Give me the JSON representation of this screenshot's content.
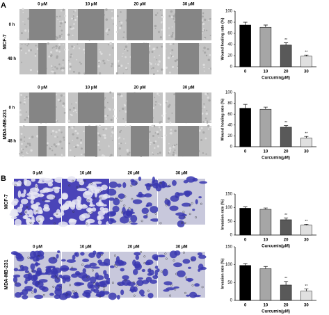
{
  "figure": {
    "panels": [
      {
        "label": "A",
        "blocks": [
          {
            "cell_line": "MCF-7",
            "columns": [
              "0 μM",
              "10 μM",
              "20 μM",
              "30 μM"
            ],
            "rows": [
              "0 h",
              "48 h"
            ]
          },
          {
            "cell_line": "MDA-MB-231",
            "columns": [
              "0 μM",
              "10 μM",
              "20 μM",
              "30 μM"
            ],
            "rows": [
              "0 h",
              "48 h"
            ]
          }
        ]
      },
      {
        "label": "B",
        "blocks": [
          {
            "cell_line": "MCF-7",
            "columns": [
              "0 μM",
              "10 μM",
              "20 μM",
              "30 μM"
            ]
          },
          {
            "cell_line": "MDA-MB-231",
            "columns": [
              "0 μM",
              "10 μM",
              "20 μM",
              "30 μM"
            ]
          }
        ]
      }
    ]
  },
  "chart_data": [
    {
      "type": "bar",
      "y_label": "Wound healing rate (%)",
      "x_label": "Curcumin(μM)",
      "categories": [
        "0",
        "10",
        "20",
        "30"
      ],
      "values": [
        75,
        71,
        39,
        19
      ],
      "errors": [
        5,
        4,
        4,
        2
      ],
      "colors": [
        "#000000",
        "#a6a6a6",
        "#595959",
        "#e0e0e0"
      ],
      "significance": [
        null,
        null,
        "**",
        "**"
      ],
      "ylim": [
        0,
        100
      ],
      "yticks": [
        0,
        20,
        40,
        60,
        80,
        100
      ]
    },
    {
      "type": "bar",
      "y_label": "Wound healing rate (%)",
      "x_label": "Curcumin(μM)",
      "categories": [
        "0",
        "10",
        "20",
        "30"
      ],
      "values": [
        71,
        69,
        36,
        16
      ],
      "errors": [
        7,
        4,
        3,
        3
      ],
      "colors": [
        "#000000",
        "#a6a6a6",
        "#595959",
        "#e0e0e0"
      ],
      "significance": [
        null,
        null,
        "**",
        "**"
      ],
      "ylim": [
        0,
        100
      ],
      "yticks": [
        0,
        20,
        40,
        60,
        80,
        100
      ]
    },
    {
      "type": "bar",
      "y_label": "Invasion rate (%)",
      "x_label": "Curcumin(μM)",
      "categories": [
        "0",
        "10",
        "20",
        "30"
      ],
      "values": [
        98,
        94,
        56,
        36
      ],
      "errors": [
        5,
        5,
        6,
        3
      ],
      "colors": [
        "#000000",
        "#a6a6a6",
        "#595959",
        "#e0e0e0"
      ],
      "significance": [
        null,
        null,
        "**",
        "**"
      ],
      "ylim": [
        0,
        150
      ],
      "yticks": [
        0,
        50,
        100,
        150
      ]
    },
    {
      "type": "bar",
      "y_label": "Invasion rate (%)",
      "x_label": "Curcumin(μM)",
      "categories": [
        "0",
        "10",
        "20",
        "30"
      ],
      "values": [
        98,
        89,
        43,
        26
      ],
      "errors": [
        5,
        6,
        10,
        6
      ],
      "colors": [
        "#000000",
        "#a6a6a6",
        "#595959",
        "#e0e0e0"
      ],
      "significance": [
        null,
        null,
        "**",
        "**"
      ],
      "ylim": [
        0,
        150
      ],
      "yticks": [
        0,
        50,
        100,
        150
      ]
    }
  ]
}
